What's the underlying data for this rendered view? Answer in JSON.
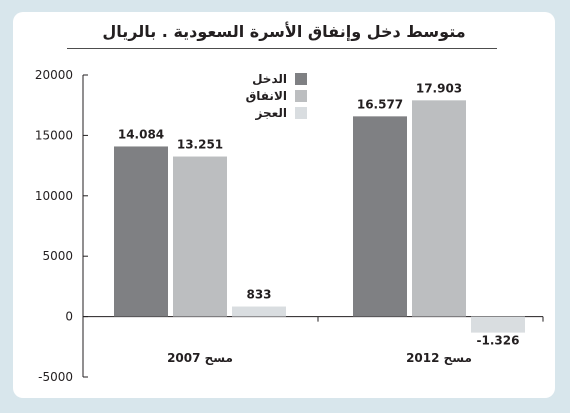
{
  "chart_data": {
    "type": "bar",
    "title": "متوسط دخل وإنفاق الأسرة السعودية . بالريال",
    "categories": [
      "مسح 2007",
      "مسح 2012"
    ],
    "series": [
      {
        "name": "الدخل",
        "color": "#7f8083",
        "values": [
          14084,
          16577
        ],
        "labels": [
          "14.084",
          "16.577"
        ]
      },
      {
        "name": "الانفاق",
        "color": "#bcbec0",
        "values": [
          13251,
          17903
        ],
        "labels": [
          "13.251",
          "17.903"
        ]
      },
      {
        "name": "العجز",
        "color": "#d9dde0",
        "values": [
          833,
          -1326
        ],
        "labels": [
          "833",
          "-1.326"
        ]
      }
    ],
    "ylim": [
      -5000,
      20000
    ],
    "yticks": [
      "20000",
      "15000",
      "10000",
      "5000",
      "0",
      "-5000"
    ],
    "ytick_values": [
      20000,
      15000,
      10000,
      5000,
      0,
      -5000
    ],
    "legend": "top-left",
    "grid": false
  }
}
